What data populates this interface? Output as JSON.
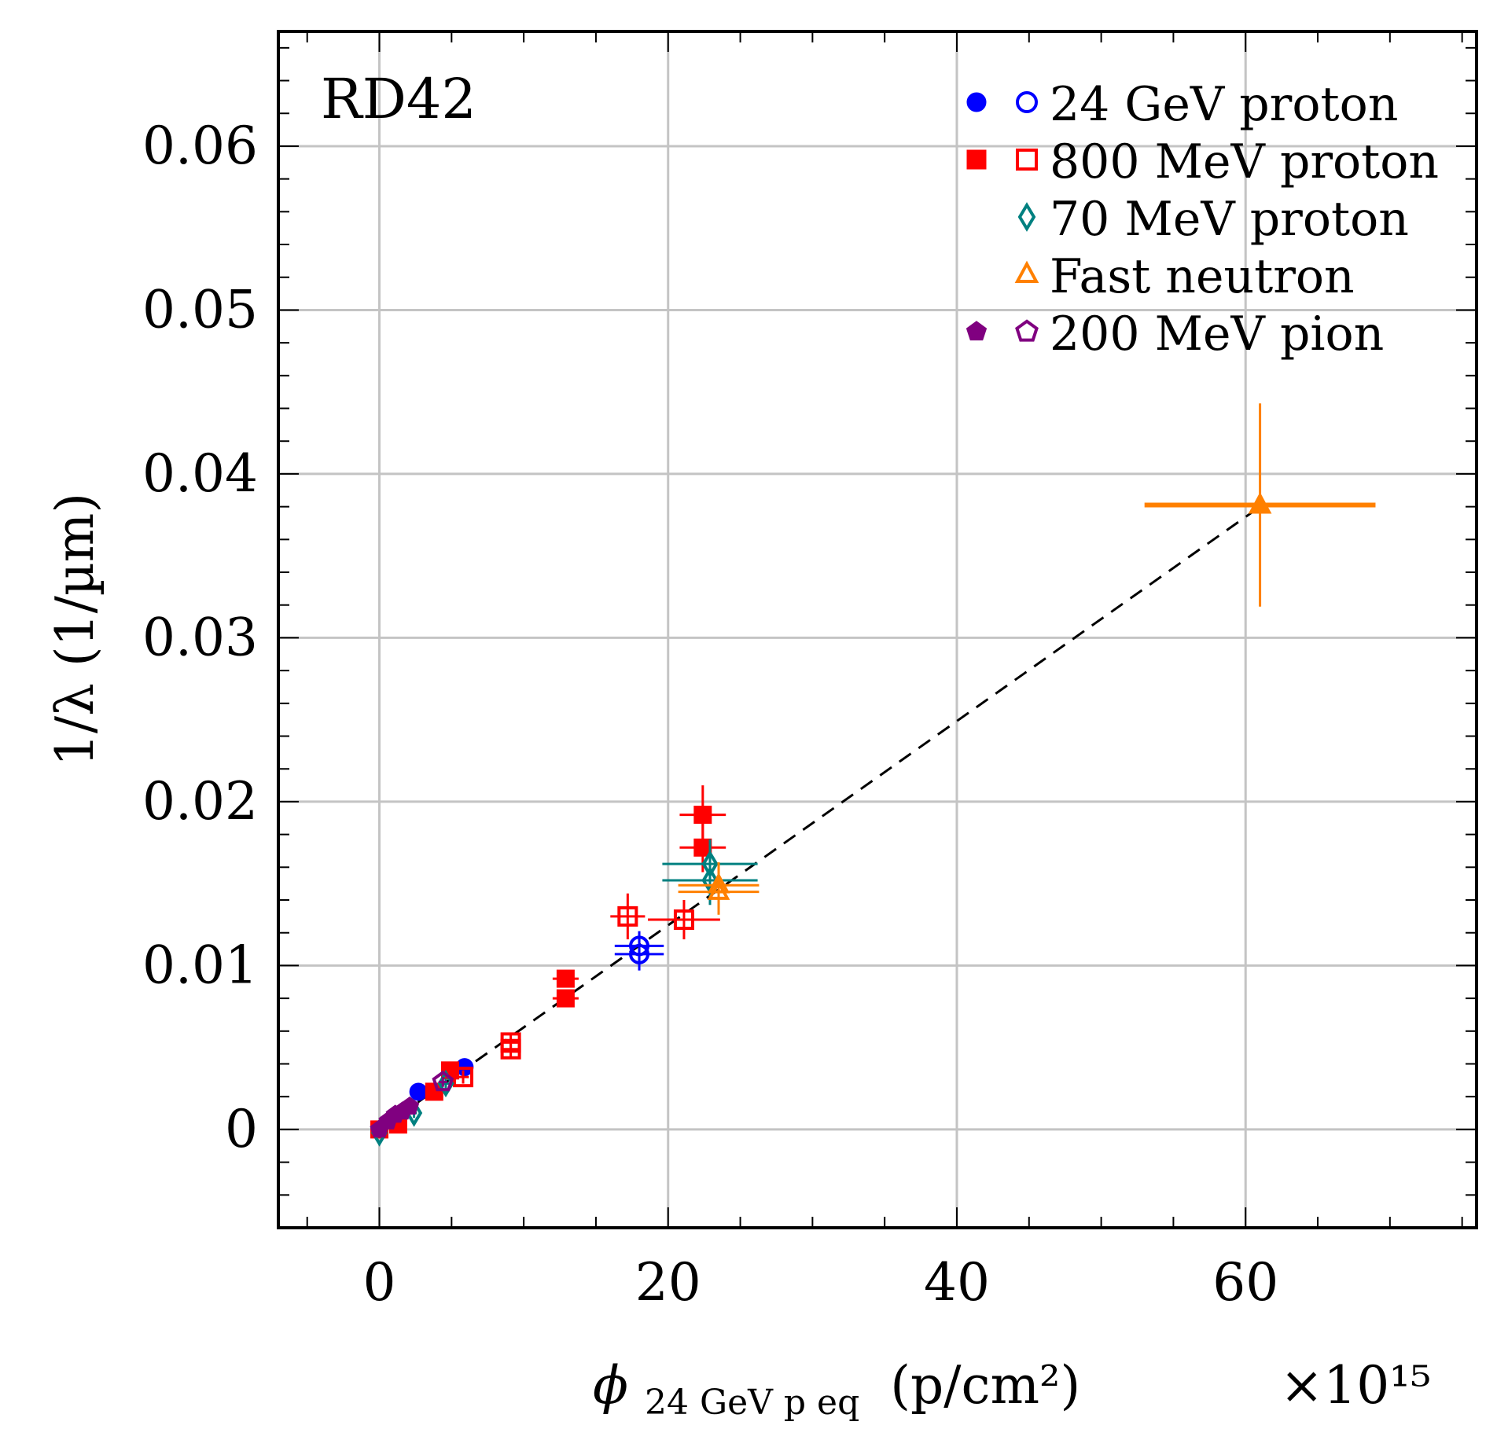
{
  "chart_data": {
    "type": "scatter",
    "annotation": "RD42",
    "xlabel": {
      "symbol": "ϕ",
      "subscript": "24 GeV p eq",
      "unit": "(p/cm²)",
      "multiplier": "×10¹⁵"
    },
    "ylabel": "1/λ (1/µm)",
    "xlim": [
      -7,
      76
    ],
    "ylim": [
      -0.006,
      0.067
    ],
    "x_ticks": [
      0,
      20,
      40,
      60
    ],
    "x_tick_labels": [
      "0",
      "20",
      "40",
      "60"
    ],
    "y_ticks": [
      0,
      0.01,
      0.02,
      0.03,
      0.04,
      0.05,
      0.06
    ],
    "y_tick_labels": [
      "0",
      "0.01",
      "0.02",
      "0.03",
      "0.04",
      "0.05",
      "0.06"
    ],
    "grid": true,
    "legend_position": "top-right",
    "fit_line": {
      "style": "dashed",
      "color": "#000000",
      "x": [
        0,
        61
      ],
      "y": [
        0,
        0.038
      ]
    },
    "series": [
      {
        "name": "24 GeV proton",
        "color": "#0000ff",
        "marker": "circle",
        "points": [
          {
            "x": 2.7,
            "y": 0.0023,
            "filled": true,
            "xerr": 0.3,
            "yerr": 0.0003
          },
          {
            "x": 5.9,
            "y": 0.0038,
            "filled": true,
            "xerr": 0.3,
            "yerr": 0.0003
          },
          {
            "x": 18.0,
            "y": 0.0112,
            "filled": false,
            "xerr": 1.7,
            "yerr": 0.0009
          },
          {
            "x": 18.0,
            "y": 0.0107,
            "filled": false,
            "xerr": 1.7,
            "yerr": 0.001
          }
        ]
      },
      {
        "name": "800 MeV proton",
        "color": "#ff0000",
        "marker": "square",
        "points": [
          {
            "x": 0.0,
            "y": 0.0,
            "filled": true,
            "xerr": 0.2,
            "yerr": 0.0003
          },
          {
            "x": 1.3,
            "y": 0.0003,
            "filled": true,
            "xerr": 0.2,
            "yerr": 0.0003
          },
          {
            "x": 3.8,
            "y": 0.0023,
            "filled": true,
            "xerr": 0.4,
            "yerr": 0.0003
          },
          {
            "x": 4.9,
            "y": 0.0036,
            "filled": true,
            "xerr": 0.4,
            "yerr": 0.0003
          },
          {
            "x": 5.8,
            "y": 0.0032,
            "filled": false,
            "xerr": 0.4,
            "yerr": 0.0004
          },
          {
            "x": 9.1,
            "y": 0.0053,
            "filled": false,
            "xerr": 0.7,
            "yerr": 0.0005
          },
          {
            "x": 9.1,
            "y": 0.0049,
            "filled": false,
            "xerr": 0.7,
            "yerr": 0.0005
          },
          {
            "x": 12.9,
            "y": 0.0092,
            "filled": true,
            "xerr": 0.9,
            "yerr": 0.0004
          },
          {
            "x": 12.9,
            "y": 0.008,
            "filled": true,
            "xerr": 0.9,
            "yerr": 0.0004
          },
          {
            "x": 17.2,
            "y": 0.013,
            "filled": false,
            "xerr": 1.2,
            "yerr": 0.0014
          },
          {
            "x": 21.1,
            "y": 0.0128,
            "filled": false,
            "xerr": 2.5,
            "yerr": 0.0012
          },
          {
            "x": 22.4,
            "y": 0.0192,
            "filled": true,
            "xerr": 1.6,
            "yerr": 0.0018
          },
          {
            "x": 22.4,
            "y": 0.0172,
            "filled": true,
            "xerr": 1.6,
            "yerr": 0.0015
          }
        ]
      },
      {
        "name": "70 MeV proton",
        "color": "#008080",
        "marker": "diamond",
        "points": [
          {
            "x": 0.0,
            "y": -0.0002,
            "filled": false,
            "xerr": 0.1,
            "yerr": 0.0003
          },
          {
            "x": 2.4,
            "y": 0.001,
            "filled": false,
            "xerr": 0.2,
            "yerr": 0.0003
          },
          {
            "x": 4.6,
            "y": 0.0028,
            "filled": false,
            "xerr": 0.3,
            "yerr": 0.0003
          },
          {
            "x": 22.9,
            "y": 0.0162,
            "filled": false,
            "xerr": 3.3,
            "yerr": 0.0015
          },
          {
            "x": 22.9,
            "y": 0.0152,
            "filled": false,
            "xerr": 3.3,
            "yerr": 0.0015
          }
        ]
      },
      {
        "name": "Fast neutron",
        "color": "#ff8000",
        "marker": "triangle",
        "points": [
          {
            "x": 23.5,
            "y": 0.0149,
            "filled": false,
            "xerr": 2.8,
            "yerr": 0.0014
          },
          {
            "x": 23.5,
            "y": 0.0145,
            "filled": false,
            "xerr": 2.8,
            "yerr": 0.0014
          },
          {
            "x": 61.0,
            "y": 0.0381,
            "filled": true,
            "xerr": 8.0,
            "yerr": 0.0062
          }
        ]
      },
      {
        "name": "200 MeV pion",
        "color": "#800080",
        "marker": "pentagon",
        "points": [
          {
            "x": 0.0,
            "y": 0.0,
            "filled": true,
            "xerr": 0.1,
            "yerr": 0.0002
          },
          {
            "x": 0.6,
            "y": 0.0005,
            "filled": true,
            "xerr": 0.1,
            "yerr": 0.0002
          },
          {
            "x": 1.1,
            "y": 0.0009,
            "filled": true,
            "xerr": 0.1,
            "yerr": 0.0002
          },
          {
            "x": 1.6,
            "y": 0.0011,
            "filled": true,
            "xerr": 0.2,
            "yerr": 0.0002
          },
          {
            "x": 2.1,
            "y": 0.0014,
            "filled": true,
            "xerr": 0.2,
            "yerr": 0.0002
          },
          {
            "x": 4.4,
            "y": 0.0029,
            "filled": false,
            "xerr": 0.3,
            "yerr": 0.0003
          }
        ]
      }
    ]
  }
}
